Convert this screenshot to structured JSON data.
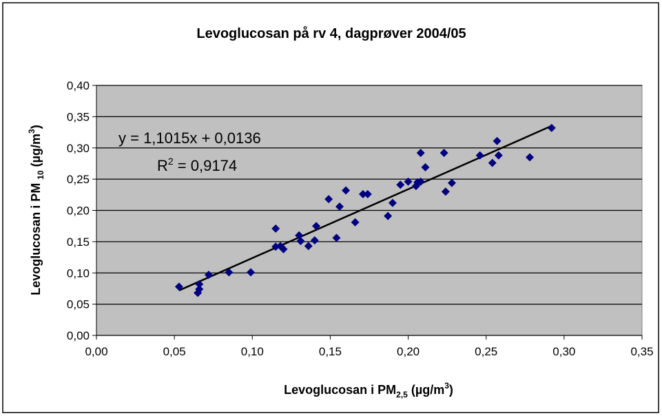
{
  "chart_data": {
    "type": "scatter",
    "title": "Levoglucosan på rv 4, dagprøver 2004/05",
    "x_label": [
      "Levoglucosan i PM",
      "2,5",
      " (µg/m",
      "3",
      ")"
    ],
    "y_label": [
      "Levoglucosan i PM ",
      "10",
      " (µg/m",
      "3",
      ")"
    ],
    "trendline": {
      "slope": 1.1015,
      "intercept": 0.0136,
      "equation": "y = 1,1015x + 0,0136",
      "r2_parts": [
        "R",
        "2",
        " = 0,9174"
      ],
      "color": "#000000"
    },
    "series": [
      {
        "color": "#000080",
        "x": [
          0.053,
          0.066,
          0.066,
          0.065,
          0.072,
          0.085,
          0.099,
          0.115,
          0.115,
          0.118,
          0.12,
          0.13,
          0.131,
          0.136,
          0.14,
          0.141,
          0.149,
          0.154,
          0.156,
          0.16,
          0.166,
          0.171,
          0.174,
          0.187,
          0.19,
          0.195,
          0.2,
          0.205,
          0.206,
          0.208,
          0.208,
          0.211,
          0.223,
          0.224,
          0.228,
          0.246,
          0.254,
          0.258,
          0.257,
          0.278,
          0.292
        ],
        "values": [
          0.078,
          0.082,
          0.074,
          0.068,
          0.097,
          0.101,
          0.101,
          0.171,
          0.142,
          0.143,
          0.138,
          0.16,
          0.151,
          0.143,
          0.152,
          0.175,
          0.218,
          0.156,
          0.206,
          0.232,
          0.181,
          0.226,
          0.226,
          0.191,
          0.212,
          0.241,
          0.246,
          0.239,
          0.245,
          0.246,
          0.292,
          0.269,
          0.292,
          0.23,
          0.244,
          0.288,
          0.276,
          0.288,
          0.311,
          0.285,
          0.332
        ]
      }
    ],
    "xlim": [
      0,
      0.35
    ],
    "ylim": [
      0,
      0.4
    ],
    "xticks": [
      {
        "value": 0,
        "label": "0,00"
      },
      {
        "value": 0.05,
        "label": "0,05"
      },
      {
        "value": 0.1,
        "label": "0,10"
      },
      {
        "value": 0.15,
        "label": "0,15"
      },
      {
        "value": 0.2,
        "label": "0,20"
      },
      {
        "value": 0.25,
        "label": "0,25"
      },
      {
        "value": 0.3,
        "label": "0,30"
      },
      {
        "value": 0.35,
        "label": "0,35"
      }
    ],
    "yticks": [
      {
        "value": 0,
        "label": "0,00"
      },
      {
        "value": 0.05,
        "label": "0,05"
      },
      {
        "value": 0.1,
        "label": "0,10"
      },
      {
        "value": 0.15,
        "label": "0,15"
      },
      {
        "value": 0.2,
        "label": "0,20"
      },
      {
        "value": 0.25,
        "label": "0,25"
      },
      {
        "value": 0.3,
        "label": "0,30"
      },
      {
        "value": 0.35,
        "label": "0,35"
      },
      {
        "value": 0.4,
        "label": "0,40"
      }
    ],
    "grid": true,
    "plot_background": "#c0c0c0"
  }
}
